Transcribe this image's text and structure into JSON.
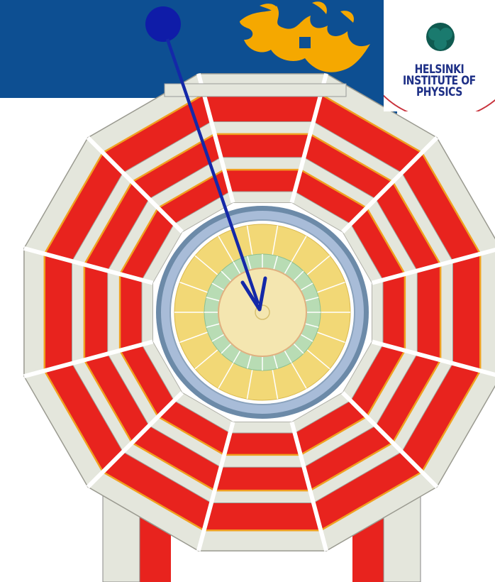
{
  "logo": {
    "name": "Helsinki Institute of Physics",
    "line1": "HELSINKI",
    "line2": "INSTITUTE OF",
    "line3": "PHYSICS"
  },
  "colors": {
    "band": "#0d4f92",
    "yoke_red": "#e8231e",
    "chamber": "#e4e6dc",
    "yoke_trim": "#f0a020",
    "calorimeter_yellow": "#f2d876",
    "tracker_green": "#b8dcb4",
    "solenoid_blue": "#a8bcd8",
    "arrow": "#1428a8",
    "flame": "#f5a800",
    "logo_text": "#1d2f86",
    "logo_emblem": "#1a7a6e"
  },
  "icons": {
    "university_flame": "flame-logo-icon",
    "institute_emblem": "trefoil-icon",
    "particle": "particle-dot-icon"
  }
}
